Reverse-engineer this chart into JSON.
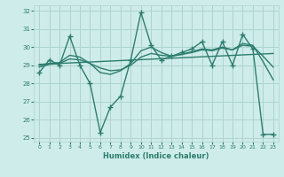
{
  "xlabel": "Humidex (Indice chaleur)",
  "xlim": [
    -0.5,
    23.5
  ],
  "ylim": [
    24.8,
    32.3
  ],
  "yticks": [
    25,
    26,
    27,
    28,
    29,
    30,
    31,
    32
  ],
  "xticks": [
    0,
    1,
    2,
    3,
    4,
    5,
    6,
    7,
    8,
    9,
    10,
    11,
    12,
    13,
    14,
    15,
    16,
    17,
    18,
    19,
    20,
    21,
    22,
    23
  ],
  "bg_color": "#ceecea",
  "grid_color": "#aed4d0",
  "line_color": "#2d7d6e",
  "line1_x": [
    0,
    1,
    2,
    3,
    4,
    5,
    6,
    7,
    8,
    9,
    10,
    11,
    12,
    13,
    14,
    15,
    16,
    17,
    18,
    19,
    20,
    21,
    22,
    23
  ],
  "line1_y": [
    28.6,
    29.3,
    29.0,
    30.6,
    29.0,
    28.0,
    25.3,
    26.7,
    27.3,
    29.3,
    31.9,
    30.1,
    29.3,
    29.5,
    29.7,
    29.9,
    30.3,
    29.0,
    30.3,
    29.0,
    30.7,
    29.9,
    25.2,
    25.2
  ],
  "line2_x": [
    0,
    23
  ],
  "line2_y": [
    29.05,
    29.65
  ],
  "line3_x": [
    0,
    1,
    2,
    3,
    4,
    5,
    6,
    7,
    8,
    9,
    10,
    11,
    12,
    13,
    14,
    15,
    16,
    17,
    18,
    19,
    20,
    21,
    22,
    23
  ],
  "line3_y": [
    29.0,
    29.1,
    29.15,
    29.55,
    29.45,
    29.1,
    28.6,
    28.5,
    28.7,
    29.1,
    29.8,
    30.0,
    29.7,
    29.5,
    29.6,
    29.75,
    29.9,
    29.85,
    30.0,
    29.85,
    30.2,
    30.1,
    29.2,
    28.2
  ],
  "line4_x": [
    0,
    1,
    2,
    3,
    4,
    5,
    6,
    7,
    8,
    9,
    10,
    11,
    12,
    13,
    14,
    15,
    16,
    17,
    18,
    19,
    20,
    21,
    22,
    23
  ],
  "line4_y": [
    28.9,
    29.05,
    29.1,
    29.35,
    29.3,
    29.1,
    28.85,
    28.7,
    28.75,
    29.0,
    29.45,
    29.65,
    29.55,
    29.5,
    29.6,
    29.7,
    29.85,
    29.8,
    29.95,
    29.85,
    30.1,
    30.05,
    29.5,
    28.9
  ]
}
